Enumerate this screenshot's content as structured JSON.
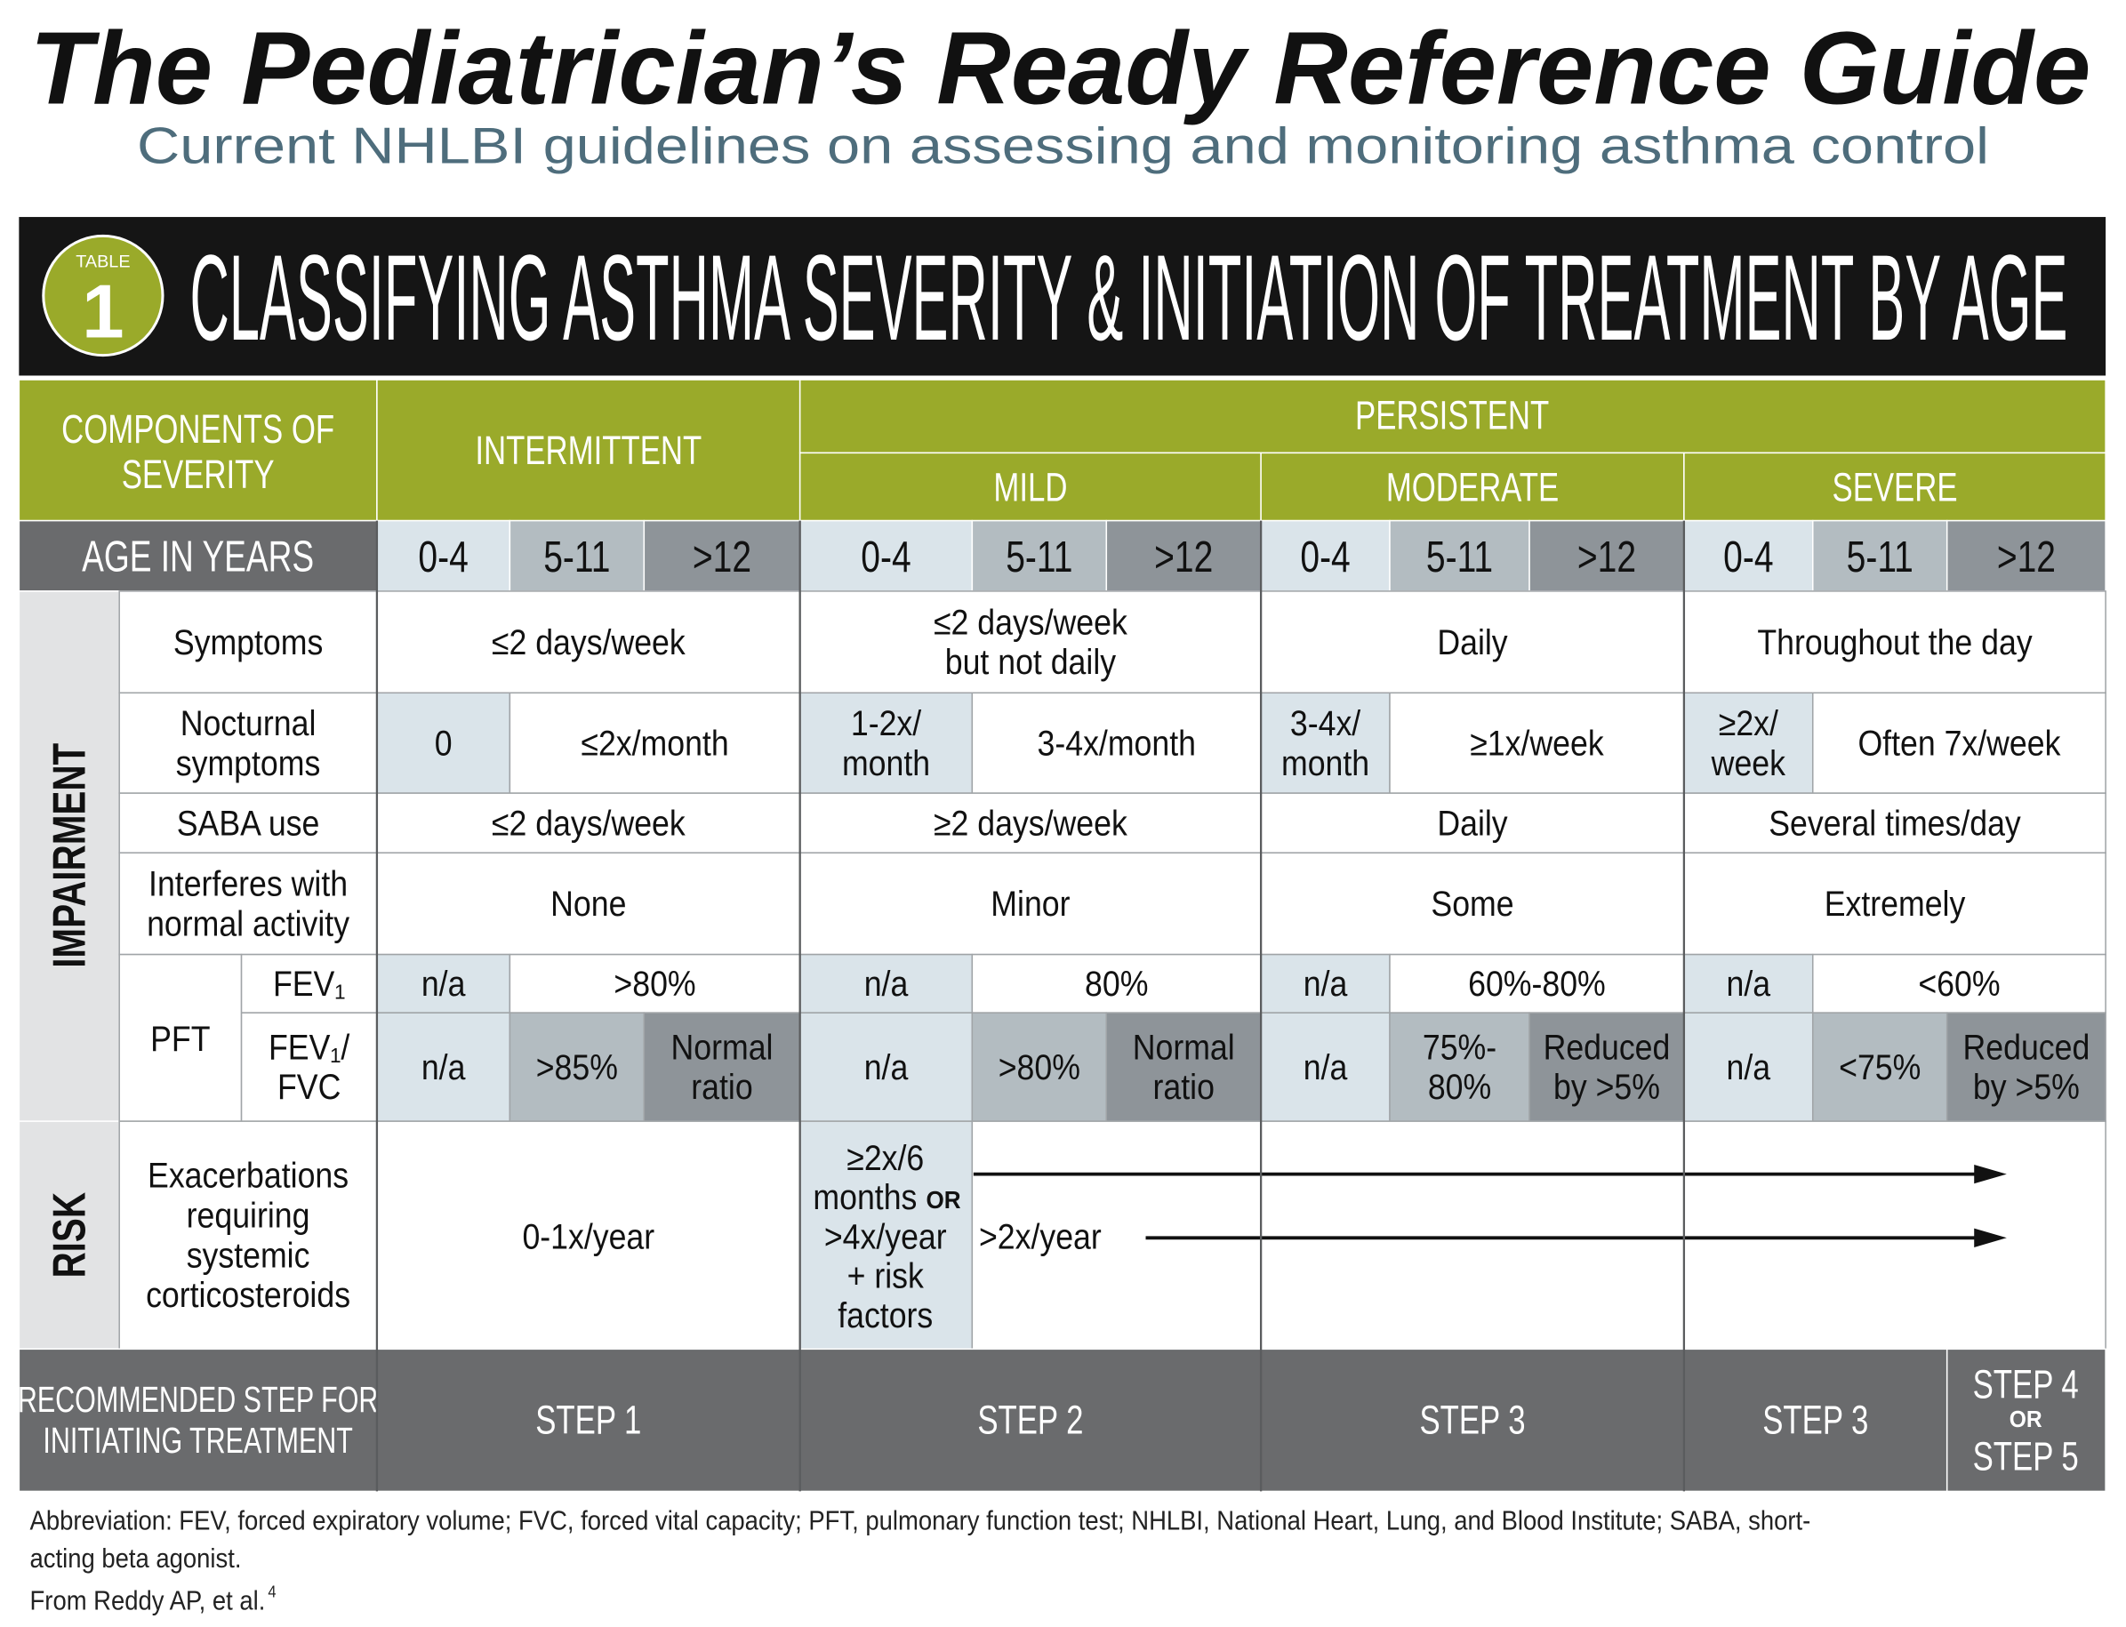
{
  "title": "The Pediatrician’s Ready Reference Guide",
  "subtitle": "Current NHLBI guidelines on assessing and monitoring asthma control",
  "table": {
    "badge": {
      "label": "TABLE",
      "number": "1"
    },
    "heading": "CLASSIFYING ASTHMA SEVERITY & INITIATION OF TREATMENT BY AGE",
    "components": [
      "COMPONENTS OF",
      "SEVERITY"
    ],
    "intermittent": "INTERMITTENT",
    "persistent": "PERSISTENT",
    "mild": "MILD",
    "moderate": "MODERATE",
    "severe": "SEVERE",
    "age_label": "AGE IN YEARS",
    "ages": [
      "0-4",
      "5-11",
      ">12",
      "0-4",
      "5-11",
      ">12",
      "0-4",
      "5-11",
      ">12",
      "0-4",
      "5-11",
      ">12"
    ],
    "impairment": "IMPAIRMENT",
    "risk": "RISK",
    "pft": "PFT",
    "rows": {
      "symptoms": {
        "label": [
          "Symptoms"
        ],
        "cells": [
          [
            "≤2 days/week"
          ],
          [
            "≤2 days/week",
            "but not daily"
          ],
          [
            "Daily"
          ],
          [
            "Throughout the day"
          ]
        ]
      },
      "nocturnal": {
        "label": [
          "Nocturnal",
          "symptoms"
        ],
        "cells": [
          [
            "0"
          ],
          [
            "≤2x/month"
          ],
          [
            "1-2x/",
            "month"
          ],
          [
            "3-4x/month"
          ],
          [
            "3-4x/",
            "month"
          ],
          [
            "≥1x/week"
          ],
          [
            "≥2x/",
            "week"
          ],
          [
            "Often 7x/week"
          ]
        ]
      },
      "saba": {
        "label": [
          "SABA use"
        ],
        "cells": [
          [
            "≤2 days/week"
          ],
          [
            "≥2 days/week"
          ],
          [
            "Daily"
          ],
          [
            "Several times/day"
          ]
        ]
      },
      "interferes": {
        "label": [
          "Interferes with",
          "normal activity"
        ],
        "cells": [
          [
            "None"
          ],
          [
            "Minor"
          ],
          [
            "Some"
          ],
          [
            "Extremely"
          ]
        ]
      },
      "fev1": {
        "label": [
          "FEV₁"
        ],
        "cells": [
          [
            "n/a"
          ],
          [
            ">80%"
          ],
          [
            "n/a"
          ],
          [
            "80%"
          ],
          [
            "n/a"
          ],
          [
            "60%-80%"
          ],
          [
            "n/a"
          ],
          [
            "<60%"
          ]
        ]
      },
      "fvc": {
        "label": [
          "FEV₁/",
          "FVC"
        ],
        "cells": [
          [
            "n/a"
          ],
          [
            ">85%"
          ],
          [
            "Normal",
            "ratio"
          ],
          [
            "n/a"
          ],
          [
            ">80%"
          ],
          [
            "Normal",
            "ratio"
          ],
          [
            "n/a"
          ],
          [
            "75%-",
            "80%"
          ],
          [
            "Reduced",
            "by >5%"
          ],
          [
            "n/a"
          ],
          [
            "<75%"
          ],
          [
            "Reduced",
            "by >5%"
          ]
        ]
      },
      "risk": {
        "label": [
          "Exacerbations",
          "requiring",
          "systemic",
          "corticosteroids"
        ],
        "intermittent": "0-1x/year",
        "mild_young": {
          "lines": [
            "≥2x/6",
            "months",
            ">4x/year",
            "+ risk",
            "factors"
          ],
          "or": "OR"
        },
        "others": ">2x/year"
      }
    },
    "recommended": {
      "label": [
        "RECOMMENDED STEP FOR",
        "INITIATING TREATMENT"
      ],
      "steps": [
        "STEP 1",
        "STEP 2",
        "STEP 3",
        "STEP 3"
      ],
      "last": {
        "top": "STEP 4",
        "or": "OR",
        "bottom": "STEP 5"
      }
    }
  },
  "footer": {
    "abbreviation": [
      "Abbreviation: FEV, forced expiratory volume; FVC, forced vital capacity; PFT, pulmonary function test; NHLBI, National Heart, Lung, and Blood Institute; SABA, short-",
      "acting beta agonist."
    ],
    "source": "From Reddy AP, et al.",
    "source_ref": "4"
  }
}
